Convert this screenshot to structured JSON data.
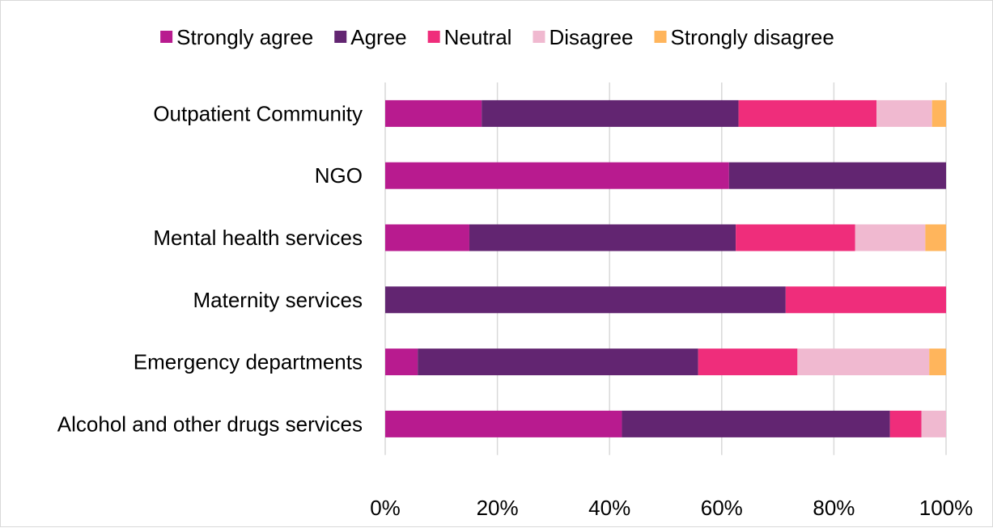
{
  "chart_data": {
    "type": "bar",
    "orientation": "horizontal",
    "stacked": "percent",
    "categories": [
      "Outpatient  Community",
      "NGO",
      "Mental health services",
      "Maternity services",
      "Emergency departments",
      "Alcohol and other drugs services"
    ],
    "series": [
      {
        "name": "Strongly agree",
        "color": "#b81b8f",
        "values": [
          17.2,
          61.3,
          15.0,
          0.0,
          5.8,
          42.2
        ]
      },
      {
        "name": "Agree",
        "color": "#622571",
        "values": [
          45.8,
          38.7,
          47.5,
          71.4,
          50.0,
          47.8
        ]
      },
      {
        "name": "Neutral",
        "color": "#ef2d7b",
        "values": [
          24.6,
          0.0,
          21.3,
          28.6,
          17.7,
          5.6
        ]
      },
      {
        "name": "Disagree",
        "color": "#f0b9d0",
        "values": [
          9.9,
          0.0,
          12.5,
          0.0,
          23.5,
          4.4
        ]
      },
      {
        "name": "Strongly disagree",
        "color": "#ffb55c",
        "values": [
          2.5,
          0.0,
          3.7,
          0.0,
          3.0,
          0.0
        ]
      }
    ],
    "xlim": [
      0,
      100
    ],
    "xticks": [
      "0%",
      "20%",
      "40%",
      "60%",
      "80%",
      "100%"
    ],
    "grid": "vertical",
    "legend_position": "top"
  }
}
